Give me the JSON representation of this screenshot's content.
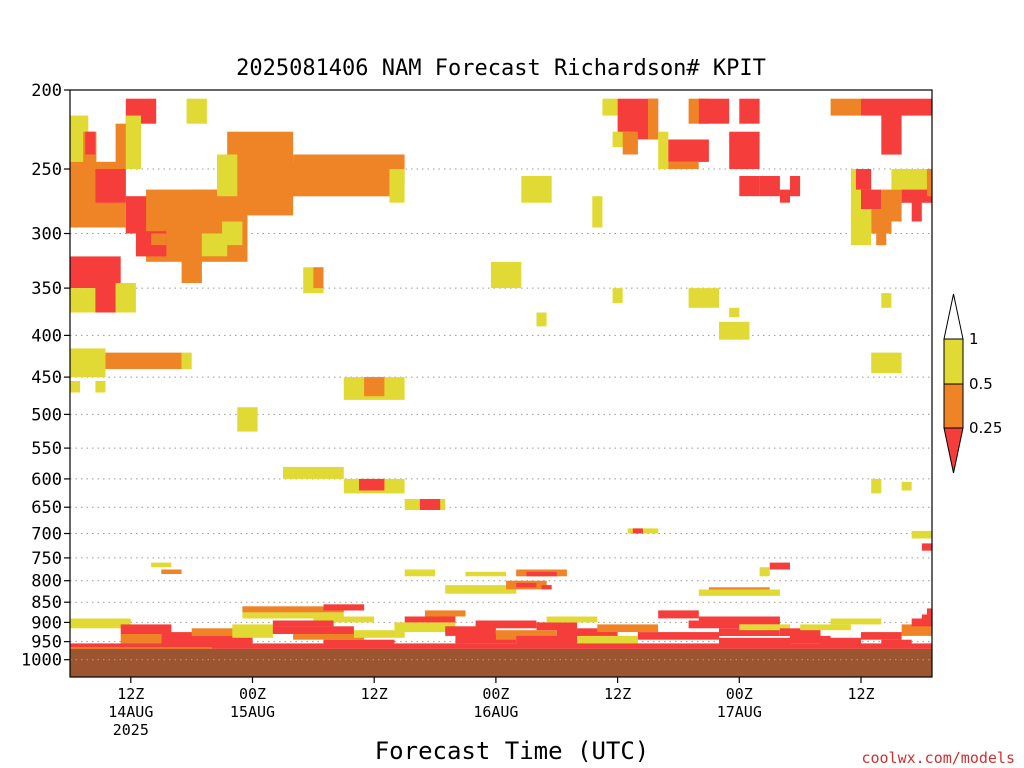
{
  "chart_data": {
    "type": "heatmap",
    "title": "2025081406 NAM Forecast Richardson# KPIT",
    "xlabel": "Forecast Time (UTC)",
    "ylabel": "",
    "x_unit": "forecast hour from 2025-08-14 06Z",
    "xlim": [
      0,
      85
    ],
    "ylim": [
      1050,
      200
    ],
    "y_scale": "log-pressure",
    "y_ticks": [
      200,
      250,
      300,
      350,
      400,
      450,
      500,
      550,
      600,
      650,
      700,
      750,
      800,
      850,
      900,
      950,
      1000
    ],
    "y_tick_labels": [
      "200",
      "250",
      "300",
      "350",
      "400",
      "450",
      "500",
      "550",
      "600",
      "650",
      "700",
      "750",
      "800",
      "850",
      "900",
      "950",
      "1000"
    ],
    "x_ticks": [
      {
        "hour": 6,
        "l1": "12Z",
        "l2": "14AUG",
        "l3": "2025"
      },
      {
        "hour": 18,
        "l1": "00Z",
        "l2": "15AUG",
        "l3": ""
      },
      {
        "hour": 30,
        "l1": "12Z",
        "l2": "",
        "l3": ""
      },
      {
        "hour": 42,
        "l1": "00Z",
        "l2": "16AUG",
        "l3": ""
      },
      {
        "hour": 54,
        "l1": "12Z",
        "l2": "",
        "l3": ""
      },
      {
        "hour": 66,
        "l1": "00Z",
        "l2": "17AUG",
        "l3": ""
      },
      {
        "hour": 78,
        "l1": "12Z",
        "l2": "",
        "l3": ""
      }
    ],
    "grid": "dotted at pressure levels",
    "legend": {
      "placement": "right",
      "bins": [
        {
          "label": "1",
          "color": "#e2da34"
        },
        {
          "label": "0.5",
          "color": "#ee8426"
        },
        {
          "label": "0.25",
          "color": "#f53e3b"
        }
      ],
      "colors": {
        "gt1": "#ffffff",
        "yellow": "#e2da34",
        "orange": "#ee8426",
        "red": "#f53e3b"
      }
    },
    "ground": {
      "top_pressure": 970,
      "color": "#9b5530"
    },
    "cells": [
      [
        0,
        1.8,
        215,
        245,
        "y"
      ],
      [
        1.3,
        2.6,
        225,
        250,
        "o"
      ],
      [
        1.5,
        2.5,
        225,
        240,
        "r"
      ],
      [
        0,
        5.5,
        245,
        295,
        "o"
      ],
      [
        2.5,
        5.5,
        250,
        275,
        "r"
      ],
      [
        4.5,
        6.5,
        220,
        250,
        "o"
      ],
      [
        5.5,
        8.5,
        205,
        220,
        "r"
      ],
      [
        5.5,
        7,
        215,
        250,
        "y"
      ],
      [
        5.5,
        8.5,
        270,
        300,
        "r"
      ],
      [
        7.5,
        17.5,
        265,
        325,
        "o"
      ],
      [
        12,
        17.5,
        265,
        290,
        "o"
      ],
      [
        6.5,
        9.5,
        298,
        320,
        "r"
      ],
      [
        8,
        9.5,
        300,
        310,
        "o"
      ],
      [
        11,
        13,
        300,
        345,
        "o"
      ],
      [
        13,
        15.5,
        300,
        320,
        "y"
      ],
      [
        15,
        17,
        290,
        310,
        "y"
      ],
      [
        11.5,
        13.5,
        205,
        220,
        "y"
      ],
      [
        15.5,
        22,
        225,
        285,
        "o"
      ],
      [
        16,
        32,
        245,
        270,
        "o"
      ],
      [
        22,
        32,
        240,
        270,
        "o"
      ],
      [
        27,
        33,
        240,
        260,
        "o"
      ],
      [
        31.5,
        33,
        250,
        275,
        "y"
      ],
      [
        14.5,
        16.5,
        240,
        270,
        "y"
      ],
      [
        0,
        5,
        320,
        350,
        "r"
      ],
      [
        0,
        5,
        350,
        375,
        "y"
      ],
      [
        2.5,
        4.5,
        345,
        375,
        "r"
      ],
      [
        4.5,
        6.5,
        345,
        375,
        "y"
      ],
      [
        0,
        3.5,
        415,
        450,
        "y"
      ],
      [
        3.5,
        11,
        420,
        440,
        "o"
      ],
      [
        11,
        12,
        420,
        440,
        "y"
      ],
      [
        0,
        1,
        455,
        470,
        "y"
      ],
      [
        2.5,
        3.5,
        455,
        470,
        "y"
      ],
      [
        16.5,
        18.5,
        490,
        525,
        "y"
      ],
      [
        27,
        33,
        450,
        480,
        "y"
      ],
      [
        29,
        31,
        450,
        475,
        "o"
      ],
      [
        21,
        27,
        580,
        600,
        "y"
      ],
      [
        27,
        33,
        600,
        625,
        "y"
      ],
      [
        28.5,
        31,
        600,
        620,
        "r"
      ],
      [
        33,
        37,
        635,
        655,
        "y"
      ],
      [
        34.5,
        36.5,
        635,
        655,
        "r"
      ],
      [
        23,
        25,
        330,
        355,
        "y"
      ],
      [
        24,
        25,
        330,
        350,
        "o"
      ],
      [
        41.5,
        44.5,
        325,
        350,
        "y"
      ],
      [
        46,
        47,
        375,
        390,
        "y"
      ],
      [
        44.5,
        47.5,
        255,
        275,
        "y"
      ],
      [
        51.5,
        52.5,
        270,
        295,
        "y"
      ],
      [
        52.5,
        54,
        205,
        215,
        "y"
      ],
      [
        54,
        58,
        205,
        230,
        "r"
      ],
      [
        57,
        58,
        205,
        230,
        "o"
      ],
      [
        53.5,
        55.5,
        225,
        235,
        "y"
      ],
      [
        54.5,
        56,
        225,
        240,
        "o"
      ],
      [
        58,
        59,
        225,
        250,
        "y"
      ],
      [
        59,
        63,
        230,
        245,
        "r"
      ],
      [
        59,
        62,
        245,
        250,
        "o"
      ],
      [
        61,
        63,
        205,
        220,
        "o"
      ],
      [
        62,
        65,
        205,
        220,
        "r"
      ],
      [
        66,
        68,
        205,
        220,
        "r"
      ],
      [
        65,
        68,
        225,
        250,
        "r"
      ],
      [
        66,
        68,
        255,
        270,
        "r"
      ],
      [
        68,
        70,
        255,
        270,
        "r"
      ],
      [
        70,
        71,
        265,
        275,
        "r"
      ],
      [
        71,
        72,
        255,
        270,
        "r"
      ],
      [
        75,
        78,
        205,
        215,
        "o"
      ],
      [
        78,
        85,
        205,
        215,
        "r"
      ],
      [
        80,
        82,
        210,
        240,
        "r"
      ],
      [
        77,
        79,
        250,
        290,
        "y"
      ],
      [
        78,
        80,
        265,
        280,
        "r"
      ],
      [
        80,
        82,
        265,
        290,
        "o"
      ],
      [
        82,
        85,
        260,
        275,
        "r"
      ],
      [
        83,
        84,
        265,
        290,
        "r"
      ],
      [
        77.5,
        79,
        250,
        265,
        "r"
      ],
      [
        81,
        85,
        250,
        265,
        "y"
      ],
      [
        84.5,
        86,
        250,
        270,
        "o"
      ],
      [
        79,
        81,
        280,
        300,
        "o"
      ],
      [
        77,
        79,
        285,
        310,
        "y"
      ],
      [
        79.5,
        80.5,
        285,
        310,
        "o"
      ],
      [
        53.5,
        54.5,
        350,
        365,
        "y"
      ],
      [
        61,
        64,
        350,
        370,
        "y"
      ],
      [
        64,
        67,
        385,
        405,
        "y"
      ],
      [
        65,
        66,
        370,
        380,
        "y"
      ],
      [
        80,
        81,
        355,
        370,
        "y"
      ],
      [
        79,
        82,
        420,
        445,
        "y"
      ],
      [
        79,
        80,
        600,
        625,
        "y"
      ],
      [
        82,
        83,
        605,
        620,
        "y"
      ],
      [
        55,
        58,
        690,
        700,
        "y"
      ],
      [
        55.5,
        56.5,
        690,
        700,
        "r"
      ],
      [
        83,
        85,
        695,
        710,
        "y"
      ],
      [
        84,
        85,
        720,
        735,
        "r"
      ],
      [
        69,
        71,
        760,
        775,
        "r"
      ],
      [
        68,
        69,
        770,
        790,
        "y"
      ],
      [
        9,
        11,
        775,
        785,
        "o"
      ],
      [
        8,
        10,
        760,
        770,
        "y"
      ],
      [
        33,
        36,
        775,
        790,
        "y"
      ],
      [
        39,
        43,
        780,
        790,
        "y"
      ],
      [
        44,
        49,
        775,
        790,
        "o"
      ],
      [
        45,
        48,
        780,
        790,
        "r"
      ],
      [
        37,
        44,
        810,
        830,
        "y"
      ],
      [
        43,
        47,
        800,
        820,
        "o"
      ],
      [
        44,
        46,
        805,
        815,
        "r"
      ],
      [
        46.5,
        47.5,
        810,
        820,
        "r"
      ],
      [
        63,
        69,
        815,
        830,
        "o"
      ],
      [
        62,
        70,
        820,
        835,
        "y"
      ],
      [
        0,
        6,
        890,
        915,
        "y"
      ],
      [
        5,
        10,
        905,
        930,
        "r"
      ],
      [
        5,
        9,
        930,
        960,
        "o"
      ],
      [
        9,
        18,
        925,
        960,
        "r"
      ],
      [
        12,
        18,
        915,
        935,
        "o"
      ],
      [
        16,
        20,
        905,
        940,
        "y"
      ],
      [
        17,
        27,
        860,
        875,
        "o"
      ],
      [
        17,
        27,
        875,
        890,
        "y"
      ],
      [
        25,
        29,
        855,
        870,
        "r"
      ],
      [
        24,
        30,
        885,
        900,
        "y"
      ],
      [
        20,
        26,
        895,
        910,
        "r"
      ],
      [
        20,
        28,
        910,
        930,
        "r"
      ],
      [
        22,
        29,
        930,
        945,
        "o"
      ],
      [
        25,
        32,
        945,
        965,
        "r"
      ],
      [
        28,
        33,
        920,
        940,
        "y"
      ],
      [
        32,
        38,
        900,
        925,
        "y"
      ],
      [
        33,
        38,
        885,
        900,
        "r"
      ],
      [
        35,
        39,
        870,
        885,
        "o"
      ],
      [
        37,
        42,
        910,
        935,
        "r"
      ],
      [
        38,
        44,
        930,
        955,
        "r"
      ],
      [
        40,
        46,
        895,
        915,
        "r"
      ],
      [
        42,
        48,
        920,
        945,
        "o"
      ],
      [
        44,
        50,
        935,
        960,
        "r"
      ],
      [
        46,
        50,
        900,
        920,
        "r"
      ],
      [
        47,
        52,
        885,
        900,
        "y"
      ],
      [
        48,
        54,
        915,
        935,
        "r"
      ],
      [
        50,
        56,
        935,
        955,
        "y"
      ],
      [
        52,
        58,
        905,
        925,
        "o"
      ],
      [
        58,
        62,
        870,
        890,
        "r"
      ],
      [
        56,
        64,
        925,
        945,
        "r"
      ],
      [
        61,
        66,
        895,
        915,
        "r"
      ],
      [
        62,
        70,
        885,
        905,
        "r"
      ],
      [
        64,
        70,
        915,
        935,
        "r"
      ],
      [
        64,
        71,
        940,
        960,
        "r"
      ],
      [
        66,
        71,
        905,
        920,
        "y"
      ],
      [
        70,
        74,
        915,
        935,
        "r"
      ],
      [
        71,
        75,
        935,
        955,
        "r"
      ],
      [
        74,
        78,
        940,
        960,
        "r"
      ],
      [
        72,
        77,
        905,
        920,
        "y"
      ],
      [
        75,
        80,
        890,
        905,
        "y"
      ],
      [
        78,
        82,
        925,
        945,
        "r"
      ],
      [
        80,
        83,
        945,
        965,
        "r"
      ],
      [
        82,
        85,
        905,
        935,
        "o"
      ],
      [
        83,
        85,
        890,
        910,
        "r"
      ],
      [
        84,
        85,
        880,
        895,
        "r"
      ],
      [
        84.5,
        85,
        865,
        885,
        "r"
      ],
      [
        0,
        85,
        955,
        970,
        "r"
      ],
      [
        0,
        14,
        965,
        970,
        "o"
      ]
    ]
  },
  "footer": {
    "credit": "coolwx.com/models"
  }
}
